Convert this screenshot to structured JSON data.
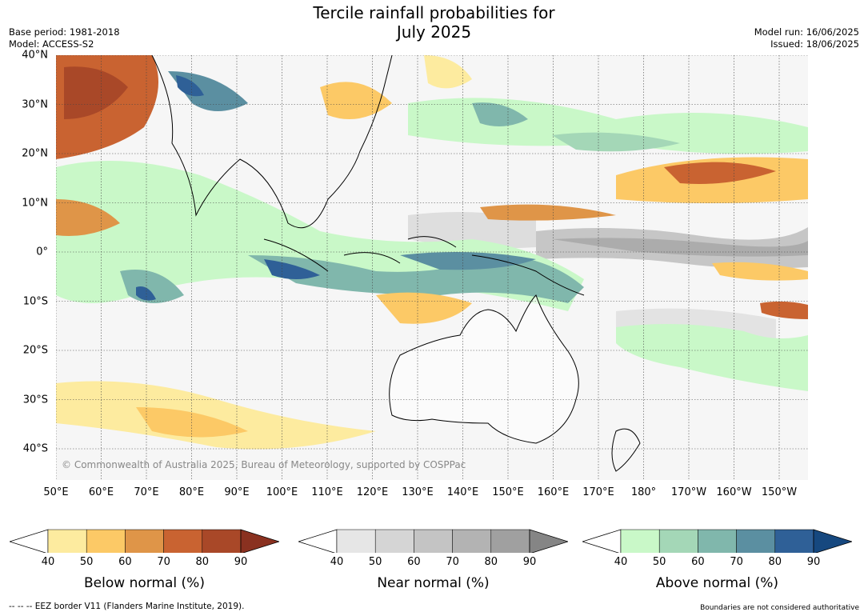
{
  "title_line1": "Tercile rainfall probabilities for",
  "title_line2": "July 2025",
  "meta_left": {
    "base_period": "Base period: 1981-2018",
    "model": "Model: ACCESS-S2"
  },
  "meta_right": {
    "model_run": "Model run: 16/06/2025",
    "issued": "Issued: 18/06/2025"
  },
  "lat_labels": [
    "40°N",
    "30°N",
    "20°N",
    "10°N",
    "0°",
    "10°S",
    "20°S",
    "30°S",
    "40°S"
  ],
  "lon_labels": [
    "50°E",
    "60°E",
    "70°E",
    "80°E",
    "90°E",
    "100°E",
    "110°E",
    "120°E",
    "130°E",
    "140°E",
    "150°E",
    "160°E",
    "170°E",
    "180°",
    "170°W",
    "160°W",
    "150°W"
  ],
  "credit": "© Commonwealth of Australia 2025, Bureau of Meteorology, supported by COSPPac",
  "colorbars": [
    {
      "title": "Below normal (%)",
      "ticks": [
        "40",
        "50",
        "60",
        "70",
        "80",
        "90"
      ],
      "colors": [
        "#fdeb9f",
        "#fcc966",
        "#df9548",
        "#c96331",
        "#a94828",
        "#8a3120"
      ]
    },
    {
      "title": "Near normal (%)",
      "ticks": [
        "40",
        "50",
        "60",
        "70",
        "80",
        "90"
      ],
      "colors": [
        "#e6e6e6",
        "#d5d5d5",
        "#c4c4c4",
        "#b3b3b3",
        "#a0a0a0",
        "#858585"
      ]
    },
    {
      "title": "Above normal (%)",
      "ticks": [
        "40",
        "50",
        "60",
        "70",
        "80",
        "90"
      ],
      "colors": [
        "#c9f8c8",
        "#a4d7b7",
        "#80b7ac",
        "#5b8fa1",
        "#2f6097",
        "#16487f"
      ]
    }
  ],
  "footer_left": "--  --  -- EEZ border V11 (Flanders Marine Institute, 2019).",
  "footer_right": "Boundaries are not considered authoritative"
}
